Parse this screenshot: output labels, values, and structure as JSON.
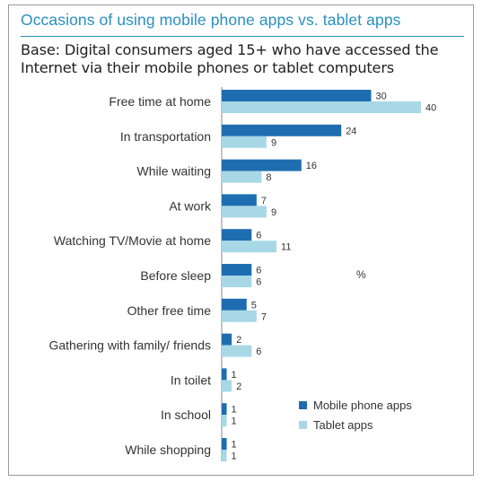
{
  "chart_data": {
    "type": "bar",
    "orientation": "horizontal",
    "title": "Occasions of using mobile phone apps vs. tablet apps",
    "subtitle": "Base: Digital consumers aged 15+ who have accessed the Internet via their mobile phones or tablet computers",
    "unit_label": "%",
    "categories": [
      "Free time at home",
      "In transportation",
      "While waiting",
      "At work",
      "Watching TV/Movie at home",
      "Before sleep",
      "Other free time",
      "Gathering with family/ friends",
      "In toilet",
      "In school",
      "While shopping"
    ],
    "series": [
      {
        "name": "Mobile phone apps",
        "color": "#1f6db1",
        "values": [
          30,
          24,
          16,
          7,
          6,
          6,
          5,
          2,
          1,
          1,
          1
        ]
      },
      {
        "name": "Tablet apps",
        "color": "#a8d8e6",
        "values": [
          40,
          9,
          8,
          9,
          11,
          6,
          7,
          6,
          2,
          1,
          1
        ]
      }
    ],
    "xlim": [
      0,
      40
    ],
    "grid": false,
    "legend_position": "bottom-right"
  }
}
